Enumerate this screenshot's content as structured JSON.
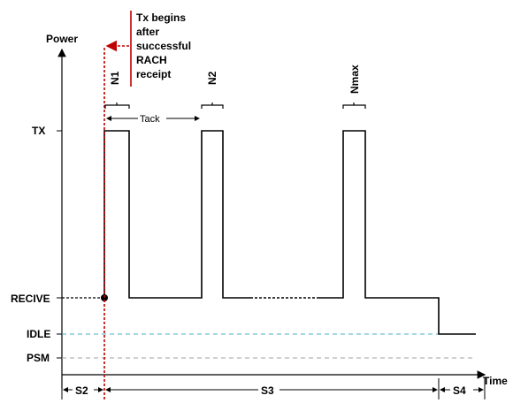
{
  "axes": {
    "y_label": "Power",
    "x_label": "Time"
  },
  "levels": {
    "tx": "TX",
    "receive": "RECIVE",
    "idle": "IDLE",
    "psm": "PSM"
  },
  "pulses": {
    "first": "N1",
    "second": "N2",
    "last": "Nmax"
  },
  "interval_label": "Tack",
  "annotation": {
    "lines": [
      "Tx begins",
      "after",
      "successful",
      "RACH",
      "receipt"
    ]
  },
  "states": {
    "s2": "S2",
    "s3": "S3",
    "s4": "S4"
  },
  "colors": {
    "trigger_line": "#c00000",
    "idle_line": "#4bacc6",
    "psm_line": "#a0a0a0",
    "signal": "#000000"
  }
}
